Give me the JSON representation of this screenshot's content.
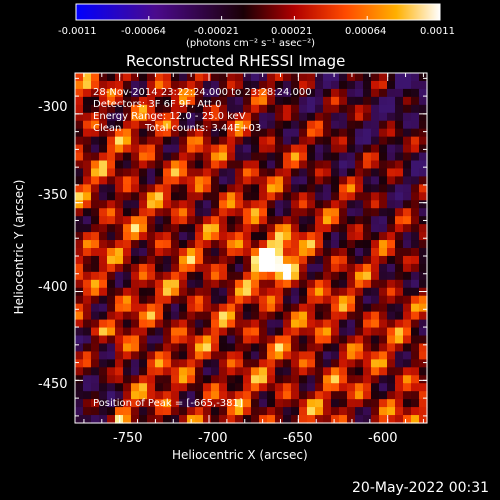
{
  "chart_data": {
    "type": "heatmap",
    "title": "Reconstructed RHESSI Image",
    "xlabel": "Heliocentric X (arcsec)",
    "ylabel": "Heliocentric Y (arcsec)",
    "xlim": [
      -775,
      -578
    ],
    "ylim": [
      -474,
      -277
    ],
    "x_ticks": [
      -750,
      -700,
      -650,
      -600
    ],
    "y_ticks": [
      -300,
      -350,
      -400,
      -450
    ],
    "colorbar": {
      "label": "(photons cm⁻² s⁻¹ asec⁻²)",
      "range": [
        -0.0011,
        0.0011
      ],
      "ticks": [
        "-0.0011",
        "-0.00064",
        "-0.00021",
        "0.00021",
        "0.00064",
        "0.0011"
      ],
      "colormap": "purple-black-red-orange-yellow-white"
    },
    "annotations": {
      "time_range": "28-Nov-2014 23:22:24.000 to 23:28:24.000",
      "detectors": "Detectors: 3F 6F 9F, Att 0",
      "energy_range": "Energy Range: 12.0 - 25.0 keV",
      "method": "Clean",
      "total_counts": "Total counts: 3.44E+03",
      "peak_position": "Position of Peak = [-665,-381]"
    },
    "peak": {
      "x": -665,
      "y": -381
    }
  },
  "footer": {
    "timestamp": "20-May-2022 00:31"
  }
}
